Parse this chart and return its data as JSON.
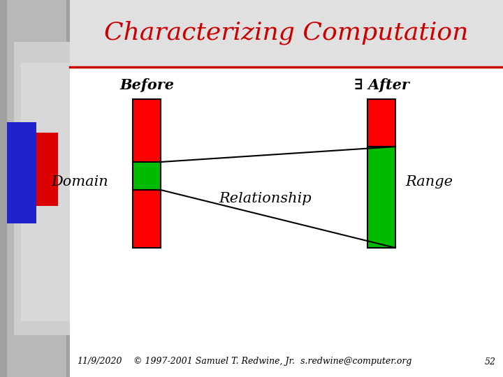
{
  "title": "Characterizing Computation",
  "title_color": "#cc0000",
  "title_fontsize": 26,
  "background_color": "#ffffff",
  "before_label": "Before",
  "after_label": "∃ After",
  "domain_label": "Domain",
  "relationship_label": "Relationship",
  "range_label": "Range",
  "label_fontsize": 15,
  "red_color": "#ff0000",
  "green_color": "#00bb00",
  "footer_date": "11/9/2020",
  "footer_copy": "© 1997-2001 Samuel T. Redwine, Jr.  s.redwine@computer.org",
  "footer_page": "52",
  "footer_fontsize": 9
}
